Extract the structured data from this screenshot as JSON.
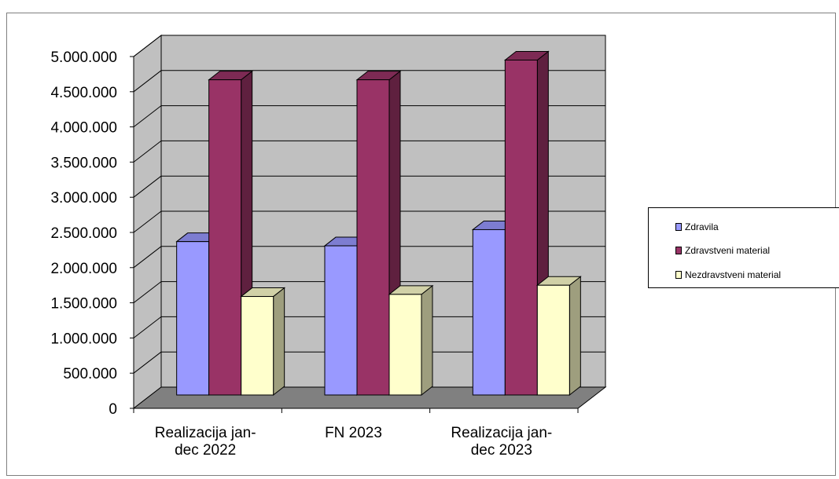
{
  "chart_data": {
    "type": "bar",
    "categories": [
      [
        "Realizacija jan-",
        "dec 2022"
      ],
      [
        "FN  2023"
      ],
      [
        "Realizacija jan-",
        "dec 2023"
      ]
    ],
    "series": [
      {
        "name": "Zdravila",
        "values": [
          2180000,
          2120000,
          2350000
        ]
      },
      {
        "name": "Zdravstveni material",
        "values": [
          4480000,
          4480000,
          4760000
        ]
      },
      {
        "name": "Nezdravstveni material",
        "values": [
          1400000,
          1430000,
          1560000
        ]
      }
    ],
    "ylim": [
      0,
      5000000
    ],
    "yticks": [
      "0",
      "500.000",
      "1.000.000",
      "1.500.000",
      "2.000.000",
      "2.500.000",
      "3.000.000",
      "3.500.000",
      "4.000.000",
      "4.500.000",
      "5.000.000"
    ],
    "grid": true,
    "legend": "right",
    "style": "3d-clustered-column"
  },
  "colors": {
    "series": [
      "#9999ff",
      "#993366",
      "#ffffcc"
    ],
    "wall": "#c0c0c0",
    "floor": "#808080"
  }
}
